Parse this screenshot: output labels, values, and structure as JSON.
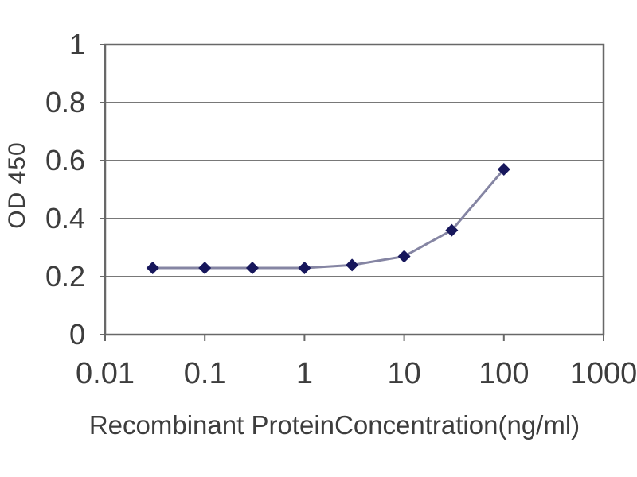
{
  "chart_data": {
    "type": "line",
    "title": "",
    "xlabel": "Recombinant ProteinConcentration(ng/ml)",
    "ylabel": "OD 450",
    "x_scale": "log",
    "xlim": [
      0.01,
      1000
    ],
    "ylim": [
      0,
      1
    ],
    "x": [
      0.03,
      0.1,
      0.3,
      1,
      3,
      10,
      30,
      100
    ],
    "y": [
      0.23,
      0.23,
      0.23,
      0.23,
      0.24,
      0.27,
      0.36,
      0.57
    ],
    "xticks": {
      "values": [
        0.01,
        0.1,
        1,
        10,
        100,
        1000
      ],
      "labels": [
        "0.01",
        "0.1",
        "1",
        "10",
        "100",
        "1000"
      ]
    },
    "yticks": {
      "values": [
        0,
        0.2,
        0.4,
        0.6,
        0.8,
        1
      ],
      "labels": [
        "0",
        "0.2",
        "0.4",
        "0.6",
        "0.8",
        "1"
      ]
    },
    "grid": "horizontal",
    "legend": "none",
    "marker": "diamond",
    "colors": {
      "line": "#8585a3",
      "marker": "#17175c",
      "grid": "#787878",
      "frame": "#686868",
      "text": "#3d3d3d",
      "background": "#ffffff"
    }
  }
}
